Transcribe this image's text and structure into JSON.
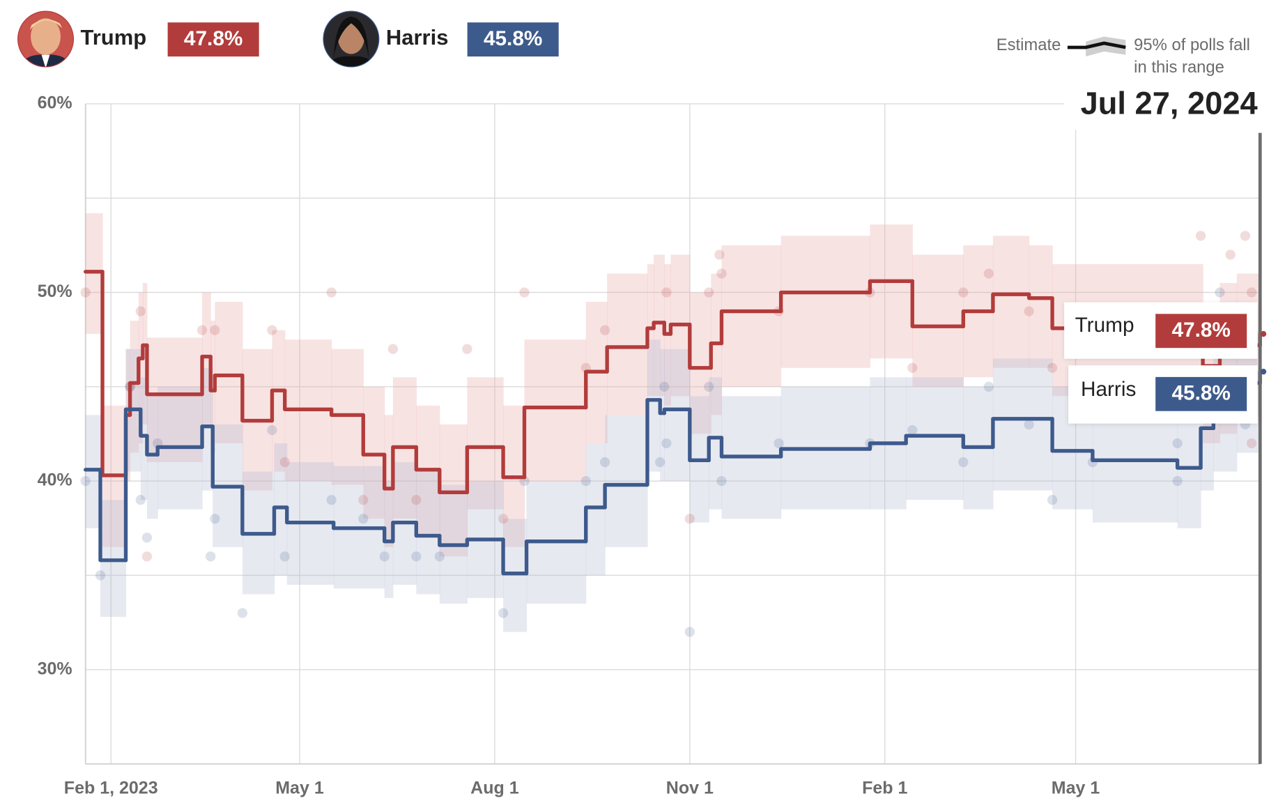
{
  "chart_data": {
    "type": "line",
    "date": "Jul 27, 2024",
    "legend": {
      "line": "Estimate",
      "band": [
        "95% of polls fall",
        "in this range"
      ]
    },
    "xlim": [
      "2023-01-20",
      "2024-07-27"
    ],
    "xticks": [
      {
        "value": "2023-02-01",
        "label": "Feb 1, 2023"
      },
      {
        "value": "2023-05-01",
        "label": "May 1"
      },
      {
        "value": "2023-08-01",
        "label": "Aug 1"
      },
      {
        "value": "2023-11-01",
        "label": "Nov 1"
      },
      {
        "value": "2024-02-01",
        "label": "Feb 1"
      },
      {
        "value": "2024-05-01",
        "label": "May 1"
      }
    ],
    "ylim": [
      25,
      60
    ],
    "yticks": [
      {
        "value": 30,
        "label": "30%"
      },
      {
        "value": 40,
        "label": "40%"
      },
      {
        "value": 50,
        "label": "50%"
      },
      {
        "value": 60,
        "label": "60%"
      }
    ],
    "minor_yticks": [
      35,
      45,
      55
    ],
    "grid": true,
    "series": [
      {
        "name": "Trump",
        "color": "#b23c3b",
        "band_color": "#e8a9a9",
        "x": [
          "2023-01-20",
          "2023-01-28",
          "2023-02-08",
          "2023-02-10",
          "2023-02-14",
          "2023-02-16",
          "2023-02-18",
          "2023-03-16",
          "2023-03-20",
          "2023-03-22",
          "2023-04-04",
          "2023-04-18",
          "2023-04-24",
          "2023-05-16",
          "2023-05-31",
          "2023-06-10",
          "2023-06-14",
          "2023-06-25",
          "2023-07-06",
          "2023-07-19",
          "2023-08-05",
          "2023-08-15",
          "2023-09-13",
          "2023-09-23",
          "2023-10-12",
          "2023-10-15",
          "2023-10-20",
          "2023-10-23",
          "2023-11-01",
          "2023-11-11",
          "2023-11-16",
          "2023-12-14",
          "2024-01-25",
          "2024-02-14",
          "2024-03-09",
          "2024-03-23",
          "2024-04-09",
          "2024-04-20",
          "2024-06-30",
          "2024-07-08",
          "2024-07-16",
          "2024-07-27"
        ],
        "values": [
          51.1,
          40.3,
          43.5,
          45.2,
          46.5,
          47.2,
          44.6,
          46.6,
          44.8,
          45.6,
          43.2,
          44.8,
          43.8,
          43.5,
          41.4,
          39.6,
          41.8,
          40.6,
          39.4,
          41.8,
          40.2,
          43.9,
          45.8,
          47.1,
          48.1,
          48.4,
          47.8,
          48.3,
          46.0,
          47.3,
          49.0,
          50.0,
          50.6,
          48.2,
          49.0,
          49.9,
          49.7,
          48.1,
          46.1,
          46.6,
          47.2,
          47.8
        ],
        "value_labels": [
          null,
          null,
          null,
          null,
          null,
          null,
          null,
          null,
          null,
          null,
          null,
          null,
          null,
          null,
          null,
          null,
          null,
          null,
          null,
          null,
          null,
          null,
          null,
          null,
          null,
          null,
          null,
          null,
          null,
          null,
          null,
          null,
          null,
          null,
          null,
          null,
          null,
          null,
          null,
          null,
          null,
          "47.8%"
        ],
        "lower": [
          47.8,
          36.5,
          40.0,
          41.5,
          42.0,
          43.0,
          41.0,
          43.0,
          41.5,
          42.0,
          39.5,
          40.5,
          40.0,
          39.8,
          38.0,
          36.5,
          38.0,
          37.0,
          36.0,
          38.5,
          36.5,
          40.0,
          42.0,
          43.5,
          44.5,
          44.5,
          44.0,
          44.5,
          42.5,
          43.5,
          45.0,
          46.0,
          46.5,
          45.0,
          45.5,
          46.0,
          46.0,
          44.5,
          42.0,
          42.5,
          43.5,
          44.0
        ],
        "upper": [
          54.2,
          44.0,
          47.0,
          48.5,
          50.0,
          50.5,
          47.6,
          50.0,
          48.5,
          49.5,
          47.0,
          48.0,
          47.5,
          47.0,
          45.0,
          43.5,
          45.5,
          44.0,
          43.0,
          45.5,
          44.0,
          47.5,
          49.5,
          51.0,
          51.5,
          52.0,
          51.5,
          52.0,
          50.0,
          51.0,
          52.5,
          53.0,
          53.6,
          52.0,
          52.5,
          53.0,
          52.5,
          51.5,
          49.0,
          50.5,
          51.0,
          51.5
        ],
        "polls": {
          "x": [
            "2023-01-20",
            "2023-02-15",
            "2023-02-10",
            "2023-02-18",
            "2023-03-16",
            "2023-03-22",
            "2023-04-18",
            "2023-04-24",
            "2023-05-16",
            "2023-05-31",
            "2023-06-14",
            "2023-06-25",
            "2023-07-19",
            "2023-08-05",
            "2023-08-15",
            "2023-09-13",
            "2023-09-22",
            "2023-10-21",
            "2023-11-01",
            "2023-11-10",
            "2023-11-15",
            "2023-11-16",
            "2023-12-13",
            "2024-01-25",
            "2024-02-14",
            "2024-03-09",
            "2024-03-21",
            "2024-04-09",
            "2024-04-20",
            "2024-06-29",
            "2024-07-13",
            "2024-07-20",
            "2024-07-23",
            "2024-07-23"
          ],
          "values": [
            50,
            49,
            45,
            36,
            48,
            48,
            48,
            41,
            50,
            39,
            47,
            39,
            47,
            38,
            50,
            46,
            48,
            50,
            38,
            50,
            52,
            51,
            49,
            50,
            46,
            50,
            51,
            49,
            46,
            53,
            52,
            53,
            50,
            42
          ]
        }
      },
      {
        "name": "Harris",
        "color": "#3d5a8c",
        "band_color": "#b3bcd3",
        "x": [
          "2023-01-20",
          "2023-01-27",
          "2023-02-08",
          "2023-02-15",
          "2023-02-18",
          "2023-02-23",
          "2023-03-16",
          "2023-03-21",
          "2023-04-04",
          "2023-04-19",
          "2023-04-25",
          "2023-05-17",
          "2023-06-10",
          "2023-06-14",
          "2023-06-25",
          "2023-07-06",
          "2023-07-19",
          "2023-08-05",
          "2023-08-16",
          "2023-09-13",
          "2023-09-22",
          "2023-10-12",
          "2023-10-18",
          "2023-10-20",
          "2023-11-01",
          "2023-11-10",
          "2023-11-16",
          "2023-12-14",
          "2024-01-25",
          "2024-02-11",
          "2024-03-09",
          "2024-03-23",
          "2024-04-20",
          "2024-05-09",
          "2024-06-18",
          "2024-06-29",
          "2024-07-05",
          "2024-07-16",
          "2024-07-27"
        ],
        "values": [
          40.6,
          35.8,
          43.8,
          42.4,
          41.4,
          41.8,
          42.9,
          39.7,
          37.2,
          38.6,
          37.8,
          37.5,
          36.8,
          37.8,
          37.1,
          36.6,
          36.9,
          35.1,
          36.8,
          38.6,
          39.8,
          44.3,
          43.6,
          43.8,
          41.1,
          42.3,
          41.3,
          41.7,
          42.0,
          42.4,
          41.8,
          43.3,
          41.6,
          41.1,
          40.7,
          42.8,
          44.0,
          45.2,
          45.8
        ],
        "value_labels": [
          null,
          null,
          null,
          null,
          null,
          null,
          null,
          null,
          null,
          null,
          null,
          null,
          null,
          null,
          null,
          null,
          null,
          null,
          null,
          null,
          null,
          null,
          null,
          null,
          null,
          null,
          null,
          null,
          null,
          null,
          null,
          null,
          null,
          null,
          null,
          null,
          null,
          null,
          "45.8%"
        ],
        "lower": [
          37.5,
          32.8,
          40.5,
          39.0,
          38.0,
          38.5,
          39.5,
          36.5,
          34.0,
          35.0,
          34.5,
          34.3,
          33.8,
          34.5,
          34.0,
          33.5,
          33.8,
          32.0,
          33.5,
          35.0,
          36.5,
          40.5,
          40.0,
          40.0,
          37.8,
          38.5,
          38.0,
          38.5,
          38.5,
          39.0,
          38.5,
          39.5,
          38.5,
          37.8,
          37.5,
          39.5,
          40.5,
          41.5,
          42.0
        ],
        "upper": [
          43.5,
          39.0,
          47.0,
          45.5,
          44.5,
          45.0,
          46.0,
          43.0,
          40.5,
          42.0,
          41.0,
          40.8,
          40.0,
          41.0,
          40.5,
          39.8,
          40.0,
          38.0,
          40.0,
          42.0,
          43.5,
          47.5,
          47.0,
          47.0,
          44.5,
          45.5,
          44.5,
          45.0,
          45.5,
          45.5,
          45.0,
          46.5,
          45.0,
          44.5,
          44.0,
          46.0,
          47.0,
          48.0,
          49.0
        ],
        "polls": {
          "x": [
            "2023-01-20",
            "2023-01-27",
            "2023-02-10",
            "2023-02-15",
            "2023-02-18",
            "2023-02-23",
            "2023-03-20",
            "2023-03-22",
            "2023-04-04",
            "2023-04-18",
            "2023-04-24",
            "2023-05-16",
            "2023-05-31",
            "2023-06-10",
            "2023-06-25",
            "2023-07-06",
            "2023-08-05",
            "2023-08-15",
            "2023-09-13",
            "2023-09-22",
            "2023-10-18",
            "2023-10-20",
            "2023-10-21",
            "2023-11-01",
            "2023-11-10",
            "2023-11-16",
            "2023-12-13",
            "2024-01-25",
            "2024-02-14",
            "2024-03-09",
            "2024-03-21",
            "2024-04-09",
            "2024-04-20",
            "2024-05-09",
            "2024-06-18",
            "2024-06-18",
            "2024-07-08",
            "2024-07-20"
          ],
          "values": [
            40,
            35,
            45,
            39,
            37,
            42,
            36,
            38,
            33,
            42.7,
            36,
            39,
            38,
            36,
            36,
            36,
            33,
            40,
            40,
            41,
            41,
            45,
            42,
            32,
            45,
            40,
            42,
            42,
            42.7,
            41,
            45,
            43,
            39,
            41,
            42,
            40,
            50,
            43
          ]
        }
      }
    ]
  }
}
